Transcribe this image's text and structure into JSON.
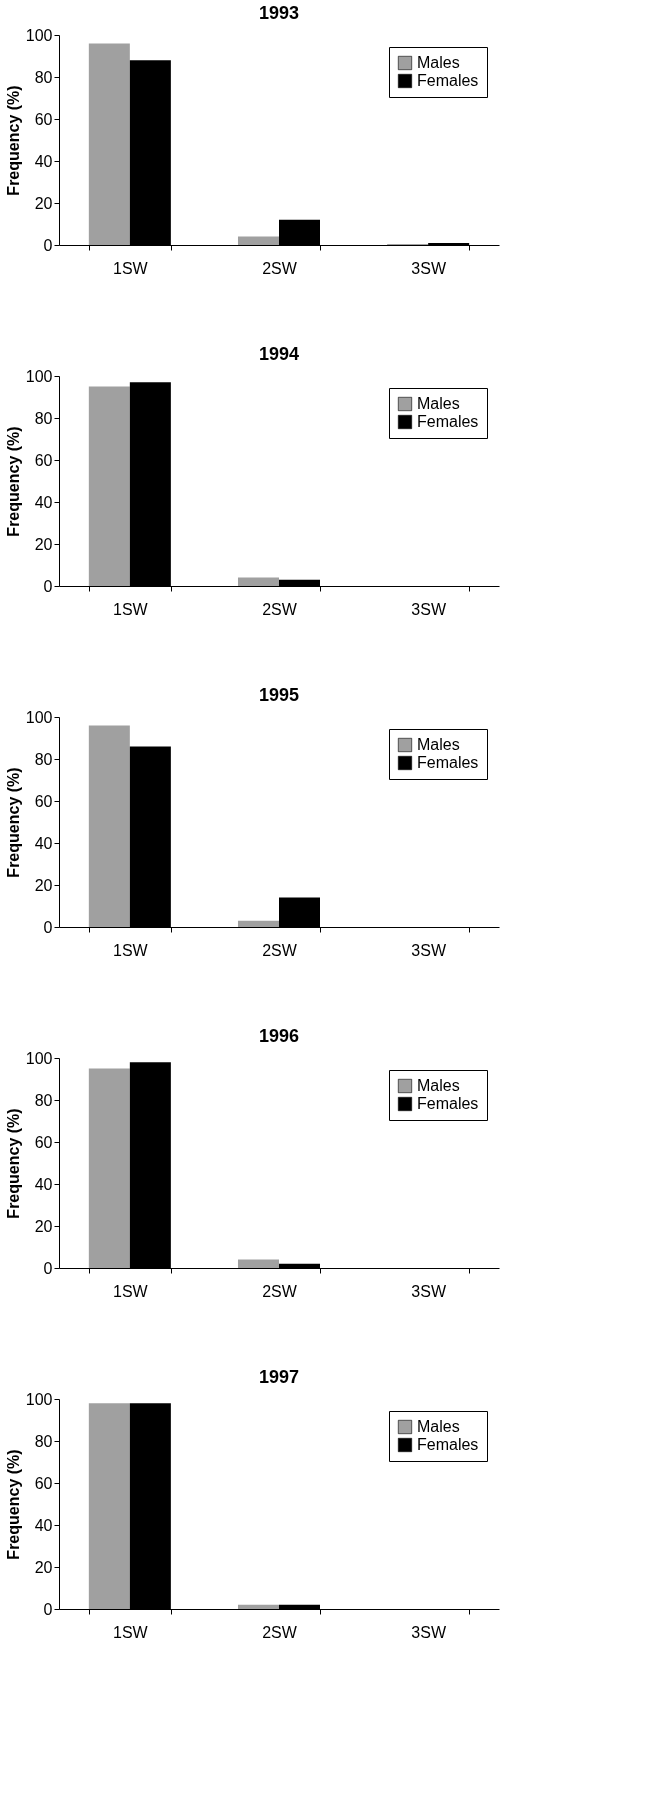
{
  "chart_data": [
    {
      "type": "bar",
      "title": "1993",
      "ylabel": "Frequency (%)",
      "categories": [
        "1SW",
        "2SW",
        "3SW"
      ],
      "ylim": [
        0,
        100
      ],
      "yticks": [
        0,
        20,
        40,
        60,
        80,
        100
      ],
      "legend": "top right",
      "grid": false,
      "series": [
        {
          "name": "Males",
          "color": "#a0a0a0",
          "values": [
            96,
            4,
            0.5
          ]
        },
        {
          "name": "Females",
          "color": "#000000",
          "values": [
            88,
            12,
            1
          ]
        }
      ]
    },
    {
      "type": "bar",
      "title": "1994",
      "ylabel": "Frequency (%)",
      "categories": [
        "1SW",
        "2SW",
        "3SW"
      ],
      "ylim": [
        0,
        100
      ],
      "yticks": [
        0,
        20,
        40,
        60,
        80,
        100
      ],
      "legend": "top right",
      "grid": false,
      "series": [
        {
          "name": "Males",
          "color": "#a0a0a0",
          "values": [
            95,
            4,
            0
          ]
        },
        {
          "name": "Females",
          "color": "#000000",
          "values": [
            97,
            3,
            0
          ]
        }
      ]
    },
    {
      "type": "bar",
      "title": "1995",
      "ylabel": "Frequency (%)",
      "categories": [
        "1SW",
        "2SW",
        "3SW"
      ],
      "ylim": [
        0,
        100
      ],
      "yticks": [
        0,
        20,
        40,
        60,
        80,
        100
      ],
      "legend": "top right",
      "grid": false,
      "series": [
        {
          "name": "Males",
          "color": "#a0a0a0",
          "values": [
            96,
            3,
            0
          ]
        },
        {
          "name": "Females",
          "color": "#000000",
          "values": [
            86,
            14,
            0
          ]
        }
      ]
    },
    {
      "type": "bar",
      "title": "1996",
      "ylabel": "Frequency (%)",
      "categories": [
        "1SW",
        "2SW",
        "3SW"
      ],
      "ylim": [
        0,
        100
      ],
      "yticks": [
        0,
        20,
        40,
        60,
        80,
        100
      ],
      "legend": "top right",
      "grid": false,
      "series": [
        {
          "name": "Males",
          "color": "#a0a0a0",
          "values": [
            95,
            4,
            0
          ]
        },
        {
          "name": "Females",
          "color": "#000000",
          "values": [
            98,
            2,
            0
          ]
        }
      ]
    },
    {
      "type": "bar",
      "title": "1997",
      "ylabel": "Frequency (%)",
      "categories": [
        "1SW",
        "2SW",
        "3SW"
      ],
      "ylim": [
        0,
        100
      ],
      "yticks": [
        0,
        20,
        40,
        60,
        80,
        100
      ],
      "legend": "top right",
      "grid": false,
      "series": [
        {
          "name": "Males",
          "color": "#a0a0a0",
          "values": [
            98,
            2,
            0
          ]
        },
        {
          "name": "Females",
          "color": "#000000",
          "values": [
            98,
            2,
            0
          ]
        }
      ]
    }
  ]
}
